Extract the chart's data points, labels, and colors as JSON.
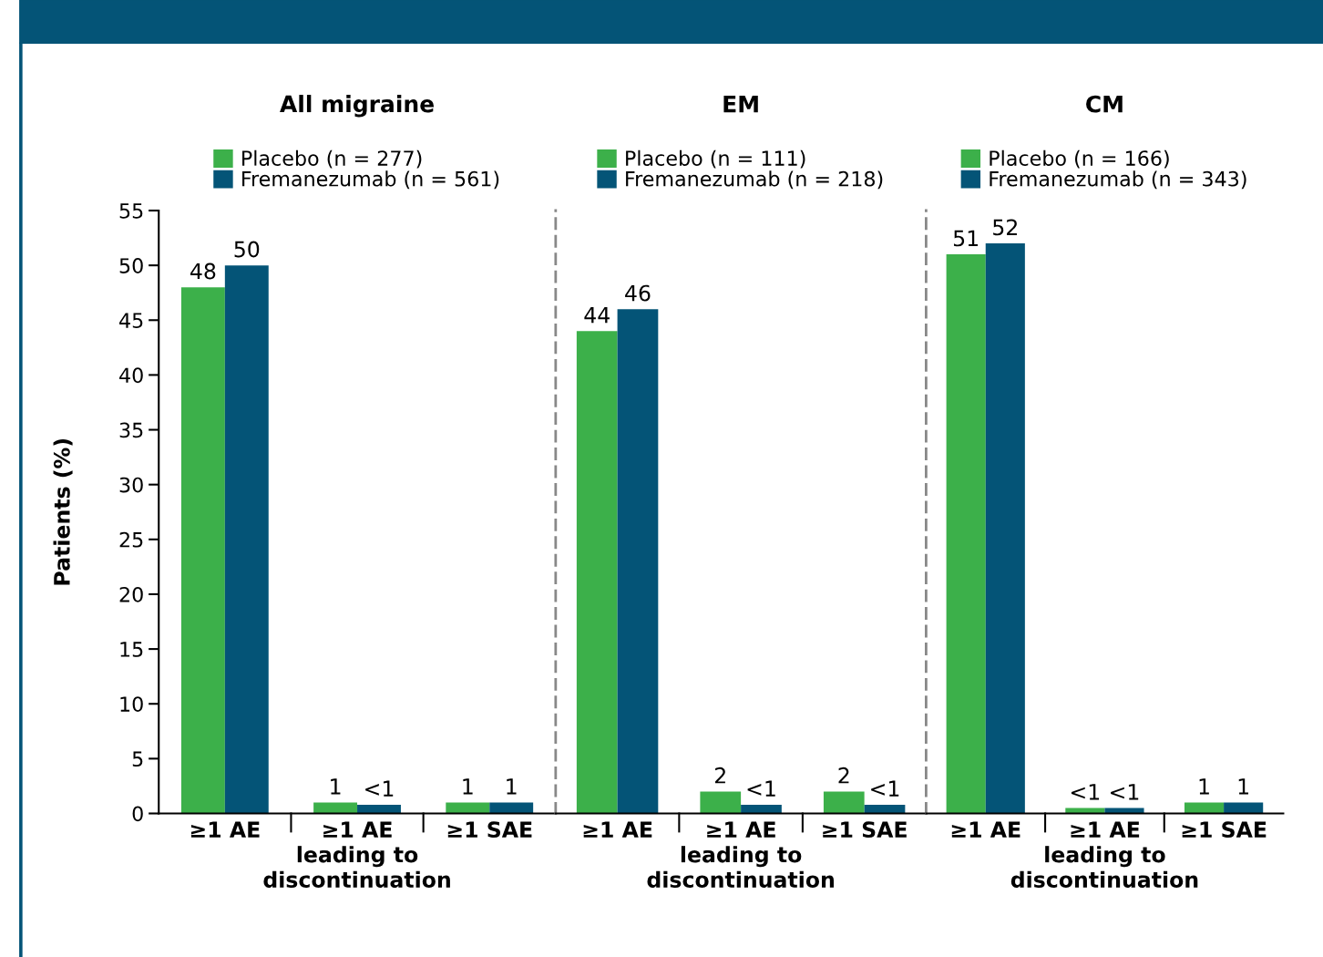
{
  "chart_data": [
    {
      "type": "bar",
      "title": "All migraine",
      "ylabel": "Patients (%)",
      "categories": [
        "≥1 AE",
        "≥1 AE\nleading to\ndiscontinuation",
        "≥1 SAE"
      ],
      "ylim": [
        0,
        55
      ],
      "yticks": [
        0,
        5,
        10,
        15,
        20,
        25,
        30,
        35,
        40,
        45,
        50,
        55
      ],
      "legend": "top",
      "grid": false,
      "series": [
        {
          "name": "Placebo (n = 277)",
          "color": "#3cb04a",
          "values": [
            48,
            1,
            1
          ],
          "value_labels": [
            "48",
            "1",
            "1"
          ]
        },
        {
          "name": "Fremanezumab (n = 561)",
          "color": "#045477",
          "values": [
            50,
            0.8,
            1
          ],
          "value_labels": [
            "50",
            "<1",
            "1"
          ]
        }
      ]
    },
    {
      "type": "bar",
      "title": "EM",
      "categories": [
        "≥1 AE",
        "≥1 AE\nleading to\ndiscontinuation",
        "≥1 SAE"
      ],
      "ylim": [
        0,
        55
      ],
      "yticks": [
        0,
        5,
        10,
        15,
        20,
        25,
        30,
        35,
        40,
        45,
        50,
        55
      ],
      "tick_labels": "x",
      "legend": "top",
      "grid": false,
      "series": [
        {
          "name": "Placebo (n = 111)",
          "color": "#3cb04a",
          "values": [
            44,
            2,
            2
          ],
          "value_labels": [
            "44",
            "2",
            "2"
          ]
        },
        {
          "name": "Fremanezumab (n = 218)",
          "color": "#045477",
          "values": [
            46,
            0.8,
            0.8
          ],
          "value_labels": [
            "46",
            "<1",
            "<1"
          ]
        }
      ]
    },
    {
      "type": "bar",
      "title": "CM",
      "categories": [
        "≥1 AE",
        "≥1 AE\nleading to\ndiscontinuation",
        "≥1 SAE"
      ],
      "ylim": [
        0,
        55
      ],
      "yticks": [
        0,
        5,
        10,
        15,
        20,
        25,
        30,
        35,
        40,
        45,
        50,
        55
      ],
      "tick_labels": "x",
      "legend": "top",
      "grid": false,
      "series": [
        {
          "name": "Placebo (n = 166)",
          "color": "#3cb04a",
          "values": [
            51,
            0.5,
            1
          ],
          "value_labels": [
            "51",
            "<1",
            "1"
          ]
        },
        {
          "name": "Fremanezumab (n = 343)",
          "color": "#045477",
          "values": [
            52,
            0.5,
            1
          ],
          "value_labels": [
            "52",
            "<1",
            "1"
          ]
        }
      ]
    }
  ]
}
